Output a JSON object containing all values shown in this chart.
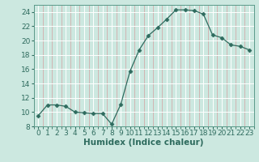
{
  "x": [
    0,
    1,
    2,
    3,
    4,
    5,
    6,
    7,
    8,
    9,
    10,
    11,
    12,
    13,
    14,
    15,
    16,
    17,
    18,
    19,
    20,
    21,
    22,
    23
  ],
  "y": [
    9.5,
    11.0,
    11.0,
    10.8,
    10.0,
    9.9,
    9.8,
    9.8,
    8.3,
    11.1,
    15.7,
    18.7,
    20.7,
    21.8,
    23.0,
    24.3,
    24.3,
    24.2,
    23.7,
    20.8,
    20.4,
    19.4,
    19.2,
    18.7
  ],
  "line_color": "#2e6b5e",
  "marker": "D",
  "marker_size": 2.5,
  "bg_color": "#cce8e0",
  "grid_color": "#b0d4cc",
  "xlabel": "Humidex (Indice chaleur)",
  "xlim": [
    -0.5,
    23.5
  ],
  "ylim": [
    8,
    25
  ],
  "yticks": [
    8,
    10,
    12,
    14,
    16,
    18,
    20,
    22,
    24
  ],
  "xticks": [
    0,
    1,
    2,
    3,
    4,
    5,
    6,
    7,
    8,
    9,
    10,
    11,
    12,
    13,
    14,
    15,
    16,
    17,
    18,
    19,
    20,
    21,
    22,
    23
  ],
  "tick_label_fontsize": 6.5,
  "xlabel_fontsize": 7.5,
  "tick_color": "#2e6b5e",
  "label_color": "#2e6b5e",
  "spine_color": "#5a9a8a",
  "grid_major_color": "#b8d8d0",
  "grid_minor_color": "#d0e8e2"
}
